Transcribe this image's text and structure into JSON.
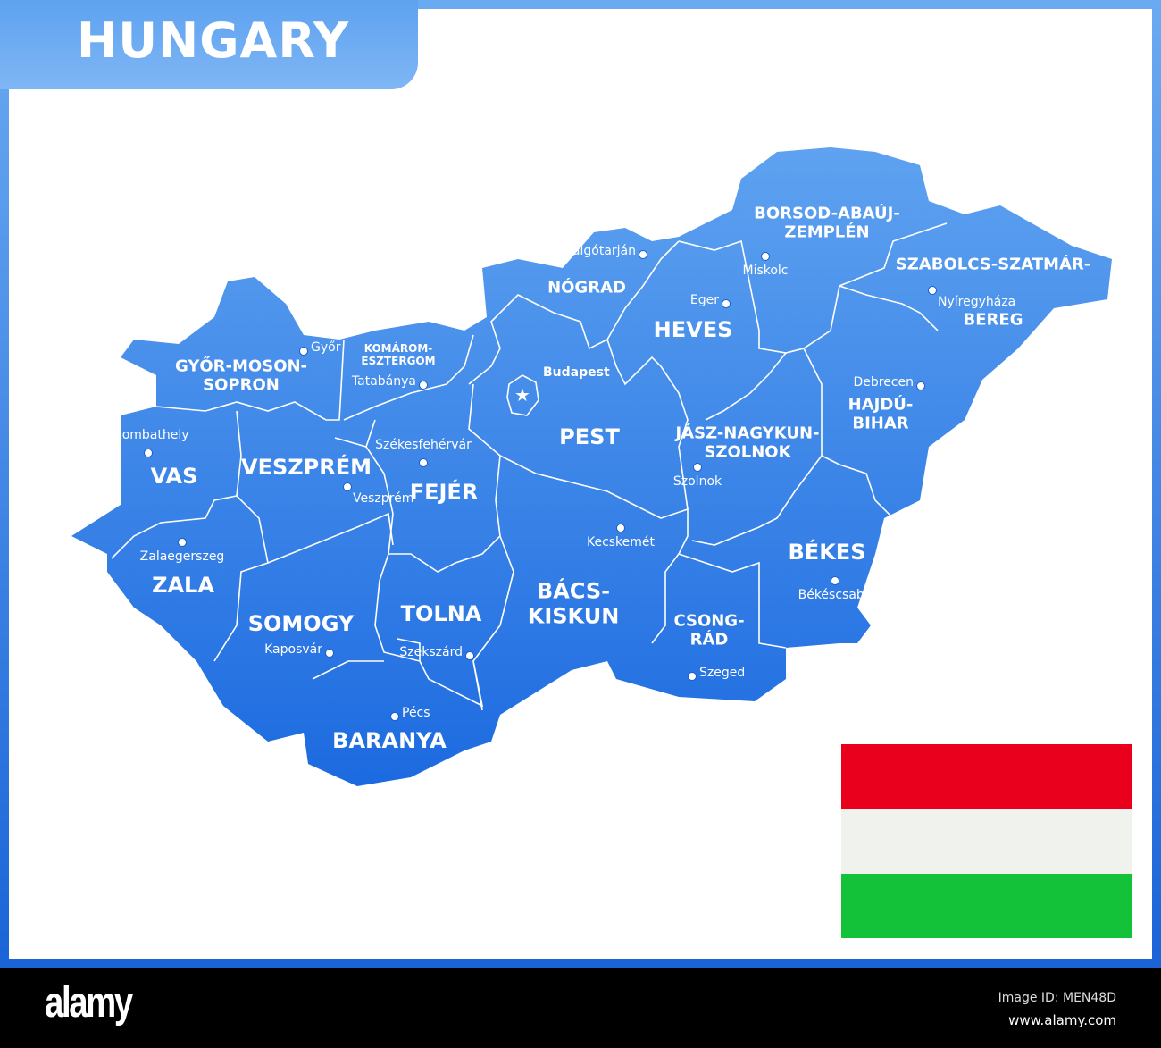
{
  "title": "HUNGARY",
  "colors": {
    "map_top": "#5ea2f0",
    "map_bottom": "#1c6ae0",
    "border": "#ffffff"
  },
  "capital": {
    "name": "Budapest",
    "icon": "star-icon"
  },
  "regions": [
    {
      "name": "GYŐR-MOSON-\nSOPRON"
    },
    {
      "name": "KOMÁROM-\nESZTERGOM"
    },
    {
      "name": "NÓGRAD"
    },
    {
      "name": "BORSOD-ABAÚJ-\nZEMPLÉN"
    },
    {
      "name": "SZABOLCS-SZATMÁR-"
    },
    {
      "name": "BEREG"
    },
    {
      "name": "HEVES"
    },
    {
      "name": "PEST"
    },
    {
      "name": "HAJDÚ-\nBIHAR"
    },
    {
      "name": "JÁSZ-NAGYKUN-\nSZOLNOK"
    },
    {
      "name": "VAS"
    },
    {
      "name": "VESZPRÉM"
    },
    {
      "name": "FEJÉR"
    },
    {
      "name": "ZALA"
    },
    {
      "name": "SOMOGY"
    },
    {
      "name": "TOLNA"
    },
    {
      "name": "BÁCS-\nKISKUN"
    },
    {
      "name": "CSONG-\nRÁD"
    },
    {
      "name": "BÉKES"
    },
    {
      "name": "BARANYA"
    }
  ],
  "cities": [
    {
      "name": "Győr"
    },
    {
      "name": "Tatabánya"
    },
    {
      "name": "Salgótarján"
    },
    {
      "name": "Miskolc"
    },
    {
      "name": "Nyíregyháza"
    },
    {
      "name": "Eger"
    },
    {
      "name": "Debrecen"
    },
    {
      "name": "Szombathely"
    },
    {
      "name": "Székesfehérvár"
    },
    {
      "name": "Veszprém"
    },
    {
      "name": "Szolnok"
    },
    {
      "name": "Kecskemét"
    },
    {
      "name": "Zalaegerszeg"
    },
    {
      "name": "Békéscsaba"
    },
    {
      "name": "Kaposvár"
    },
    {
      "name": "Szekszárd"
    },
    {
      "name": "Szeged"
    },
    {
      "name": "Pécs"
    }
  ],
  "flag": {
    "stripes": [
      "#e8001c",
      "#f0f2ee",
      "#14c23a"
    ]
  },
  "footer": {
    "logo": "alamy",
    "image_id": "Image ID: MEN48D",
    "site": "www.alamy.com"
  }
}
